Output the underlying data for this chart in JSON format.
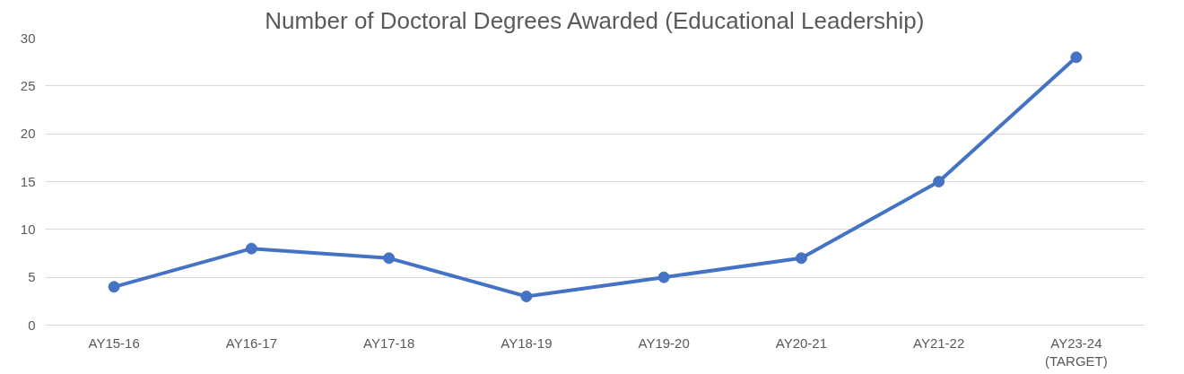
{
  "chart_data": {
    "type": "line",
    "title": "Number of Doctoral Degrees Awarded (Educational Leadership)",
    "categories": [
      "AY15-16",
      "AY16-17",
      "AY17-18",
      "AY18-19",
      "AY19-20",
      "AY20-21",
      "AY21-22",
      "AY23-24\n(TARGET)"
    ],
    "series": [
      {
        "color": "#4472c4",
        "values": [
          4,
          8,
          7,
          3,
          5,
          7,
          15,
          28
        ]
      }
    ],
    "ylim": [
      0,
      30
    ],
    "yticks": [
      0,
      5,
      10,
      15,
      20,
      25,
      30
    ],
    "grid": "y",
    "marker": "circle",
    "line_style": "solid"
  }
}
